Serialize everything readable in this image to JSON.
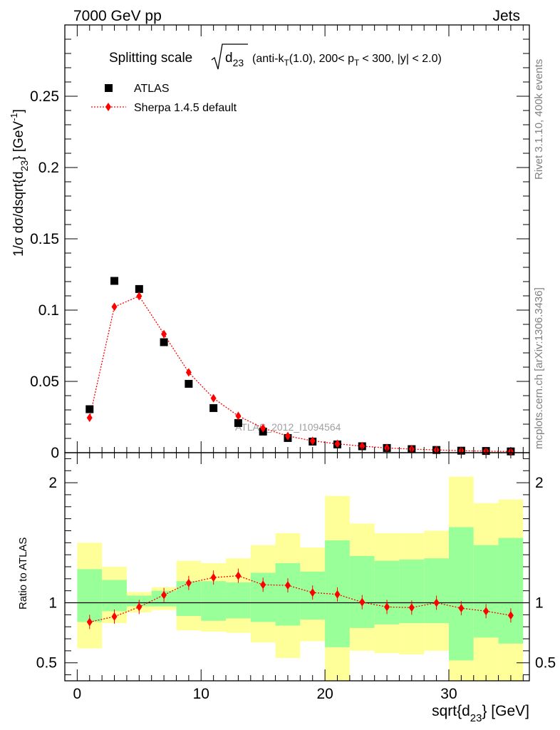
{
  "header": {
    "left": "7000 GeV pp",
    "right": "Jets"
  },
  "side_labels": {
    "rivet": "Rivet 3.1.10,  400k events",
    "mcplots": "mcplots.cern.ch [arXiv:1306.3436]"
  },
  "title": {
    "prefix": "Splitting scale",
    "root_var": "d",
    "root_sub": "23",
    "suffix_a": "(anti-k",
    "suffix_a_sub": "T",
    "suffix_b": "(1.0), 200< p",
    "suffix_b_sub": "T",
    "suffix_c": "< 300, |y| < 2.0)"
  },
  "watermark": "ATLAS_2012_I1094564",
  "axes": {
    "xlabel_main": "sqrt{d",
    "xlabel_sub": "23",
    "xlabel_tail": "} [GeV]",
    "ylabel_top_a": "1/σ dσ/dsqrt{d",
    "ylabel_top_sub": "23",
    "ylabel_top_b": "} [GeV",
    "ylabel_top_sup": "-1",
    "ylabel_top_c": "]",
    "ylabel_bottom": "Ratio to ATLAS"
  },
  "colors": {
    "data": "#000000",
    "mc": "#ff0000",
    "band_outer": "#ffff99",
    "band_inner": "#99ff99"
  },
  "chart_data": {
    "type": "scatter",
    "x_range": [
      -1,
      36.5
    ],
    "x_ticks": [
      0,
      10,
      20,
      30
    ],
    "bin_edges": [
      0,
      2,
      4,
      6,
      8,
      10,
      12,
      14,
      16,
      18,
      20,
      22,
      24,
      26,
      28,
      30,
      32,
      34,
      36
    ],
    "x": [
      1,
      3,
      5,
      7,
      9,
      11,
      13,
      15,
      17,
      19,
      21,
      23,
      25,
      27,
      29,
      31,
      33,
      35
    ],
    "main": {
      "ylim": [
        0,
        0.3
      ],
      "y_ticks": [
        0,
        0.05,
        0.1,
        0.15,
        0.2,
        0.25
      ],
      "y_tick_labels": [
        "0",
        "0.05",
        "0.1",
        "0.15",
        "0.2",
        "0.25"
      ],
      "series": [
        {
          "name": "ATLAS",
          "style": "square-markers",
          "values": [
            0.0305,
            0.1205,
            0.1148,
            0.0775,
            0.0483,
            0.0313,
            0.0208,
            0.0148,
            0.0103,
            0.0078,
            0.0058,
            0.0045,
            0.0033,
            0.0025,
            0.0019,
            0.0014,
            0.0012,
            0.0009
          ]
        },
        {
          "name": "Sherpa 1.4.5 default",
          "style": "diamond-dotted-line",
          "values": [
            0.0245,
            0.1023,
            0.1098,
            0.0832,
            0.0563,
            0.0382,
            0.0258,
            0.0172,
            0.0117,
            0.0083,
            0.0062,
            0.0046,
            0.0033,
            0.0025,
            0.0019,
            0.0014,
            0.0011,
            0.0008
          ]
        }
      ]
    },
    "ratio": {
      "ylim": [
        0.35,
        2.25
      ],
      "y_ticks": [
        0.5,
        1,
        2
      ],
      "y_tick_labels": [
        "0.5",
        "1",
        "2"
      ],
      "reference_line": 1,
      "band_outer": {
        "lo": [
          0.62,
          0.83,
          0.92,
          0.94,
          0.77,
          0.76,
          0.75,
          0.67,
          0.54,
          0.68,
          0.35,
          0.6,
          0.58,
          0.57,
          0.6,
          0.35,
          0.35,
          0.35
        ],
        "hi": [
          1.5,
          1.3,
          1.09,
          1.13,
          1.35,
          1.33,
          1.37,
          1.48,
          1.58,
          1.46,
          1.89,
          1.66,
          1.58,
          1.58,
          1.6,
          2.05,
          1.83,
          1.86
        ]
      },
      "band_inner": {
        "lo": [
          0.84,
          0.93,
          0.97,
          0.97,
          0.89,
          0.85,
          0.87,
          0.84,
          0.81,
          0.86,
          0.63,
          0.79,
          0.82,
          0.83,
          0.83,
          0.52,
          0.71,
          0.66
        ]
      },
      "band_inner_hi": [
        1.28,
        1.19,
        1.06,
        1.1,
        1.18,
        1.18,
        1.17,
        1.25,
        1.33,
        1.26,
        1.52,
        1.39,
        1.35,
        1.36,
        1.37,
        1.63,
        1.48,
        1.54
      ],
      "series": [
        {
          "name": "Sherpa 1.4.5 default",
          "values": [
            0.84,
            0.885,
            0.965,
            1.065,
            1.165,
            1.21,
            1.225,
            1.15,
            1.145,
            1.085,
            1.07,
            1.005,
            0.965,
            0.96,
            1.0,
            0.955,
            0.93,
            0.895
          ]
        }
      ]
    }
  }
}
